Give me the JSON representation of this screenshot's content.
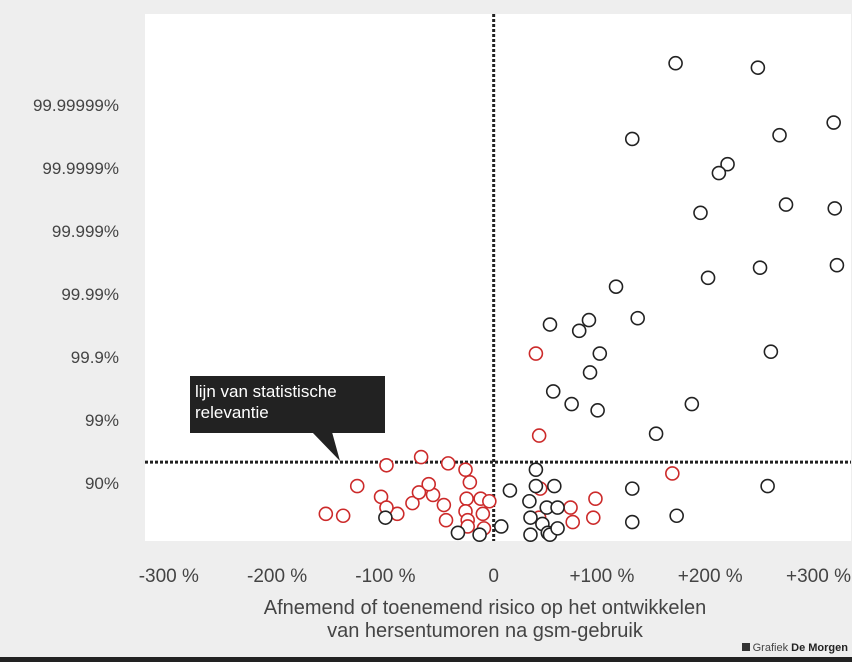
{
  "chart_data": {
    "type": "scatter",
    "xlabel_lines": [
      "Afnemend of toenemend risico op het ontwikkelen",
      "van hersentumoren na gsm-gebruik"
    ],
    "x_ticks": [
      {
        "value": -300,
        "label": "-300 %"
      },
      {
        "value": -200,
        "label": "-200 %"
      },
      {
        "value": -100,
        "label": "-100 %"
      },
      {
        "value": 0,
        "label": "0"
      },
      {
        "value": 100,
        "label": "+100 %"
      },
      {
        "value": 200,
        "label": "+200 %"
      },
      {
        "value": 300,
        "label": "+300 %"
      }
    ],
    "y_ticks": [
      {
        "level": 1,
        "label": "90%"
      },
      {
        "level": 2,
        "label": "99%"
      },
      {
        "level": 3,
        "label": "99.9%"
      },
      {
        "level": 4,
        "label": "99.99%"
      },
      {
        "level": 5,
        "label": "99.999%"
      },
      {
        "level": 6,
        "label": "99.9999%"
      },
      {
        "level": 7,
        "label": "99.99999%"
      }
    ],
    "xlim": [
      -322,
      330
    ],
    "ylim": [
      0.1,
      8.45
    ],
    "reference_lines": {
      "x": 0,
      "y_level": 1.35
    },
    "grid": false,
    "colors": {
      "not_significant": "#cc2a2a",
      "significant": "#222222",
      "reference": "#222222"
    },
    "series": [
      {
        "key": "not_significant",
        "points": [
          [
            -155,
            0.53
          ],
          [
            -139,
            0.5
          ],
          [
            -126,
            0.97
          ],
          [
            -99,
            1.3
          ],
          [
            -104,
            0.8
          ],
          [
            -89,
            0.53
          ],
          [
            -99,
            0.63
          ],
          [
            -75,
            0.7
          ],
          [
            -67,
            1.43
          ],
          [
            -69,
            0.87
          ],
          [
            -56,
            0.83
          ],
          [
            -60,
            1.0
          ],
          [
            -42,
            1.33
          ],
          [
            -46,
            0.67
          ],
          [
            -44,
            0.43
          ],
          [
            -26,
            1.23
          ],
          [
            -25,
            0.77
          ],
          [
            -26,
            0.57
          ],
          [
            -24,
            0.43
          ],
          [
            -22,
            1.03
          ],
          [
            -24,
            0.33
          ],
          [
            -12,
            0.77
          ],
          [
            -10,
            0.53
          ],
          [
            -9,
            0.3
          ],
          [
            -4,
            0.73
          ],
          [
            39,
            3.07
          ],
          [
            42,
            0.47
          ],
          [
            42,
            1.77
          ],
          [
            43,
            0.93
          ],
          [
            71,
            0.63
          ],
          [
            73,
            0.4
          ],
          [
            94,
            0.77
          ],
          [
            92,
            0.47
          ],
          [
            165,
            1.17
          ]
        ]
      },
      {
        "key": "significant",
        "points": [
          [
            168,
            7.67
          ],
          [
            244,
            7.6
          ],
          [
            128,
            6.47
          ],
          [
            264,
            6.53
          ],
          [
            314,
            6.73
          ],
          [
            216,
            6.07
          ],
          [
            208,
            5.93
          ],
          [
            191,
            5.3
          ],
          [
            270,
            5.43
          ],
          [
            315,
            5.37
          ],
          [
            113,
            4.13
          ],
          [
            198,
            4.27
          ],
          [
            246,
            4.43
          ],
          [
            317,
            4.47
          ],
          [
            52,
            3.53
          ],
          [
            88,
            3.6
          ],
          [
            79,
            3.43
          ],
          [
            133,
            3.63
          ],
          [
            98,
            3.07
          ],
          [
            89,
            2.77
          ],
          [
            55,
            2.47
          ],
          [
            72,
            2.27
          ],
          [
            96,
            2.17
          ],
          [
            183,
            2.27
          ],
          [
            150,
            1.8
          ],
          [
            256,
            3.1
          ],
          [
            253,
            0.97
          ],
          [
            -100,
            0.47
          ],
          [
            -33,
            0.23
          ],
          [
            -13,
            0.2
          ],
          [
            7,
            0.33
          ],
          [
            15,
            0.9
          ],
          [
            33,
            0.73
          ],
          [
            34,
            0.47
          ],
          [
            34,
            0.2
          ],
          [
            39,
            1.23
          ],
          [
            39,
            0.97
          ],
          [
            45,
            0.37
          ],
          [
            50,
            0.23
          ],
          [
            49,
            0.63
          ],
          [
            52,
            0.2
          ],
          [
            56,
            0.97
          ],
          [
            59,
            0.63
          ],
          [
            59,
            0.3
          ],
          [
            128,
            0.93
          ],
          [
            128,
            0.4
          ],
          [
            169,
            0.5
          ]
        ]
      }
    ],
    "callout": {
      "lines": [
        "lijn van statistische",
        "relevantie"
      ]
    },
    "source": {
      "prefix": "Grafiek",
      "brand": "De Morgen"
    }
  }
}
